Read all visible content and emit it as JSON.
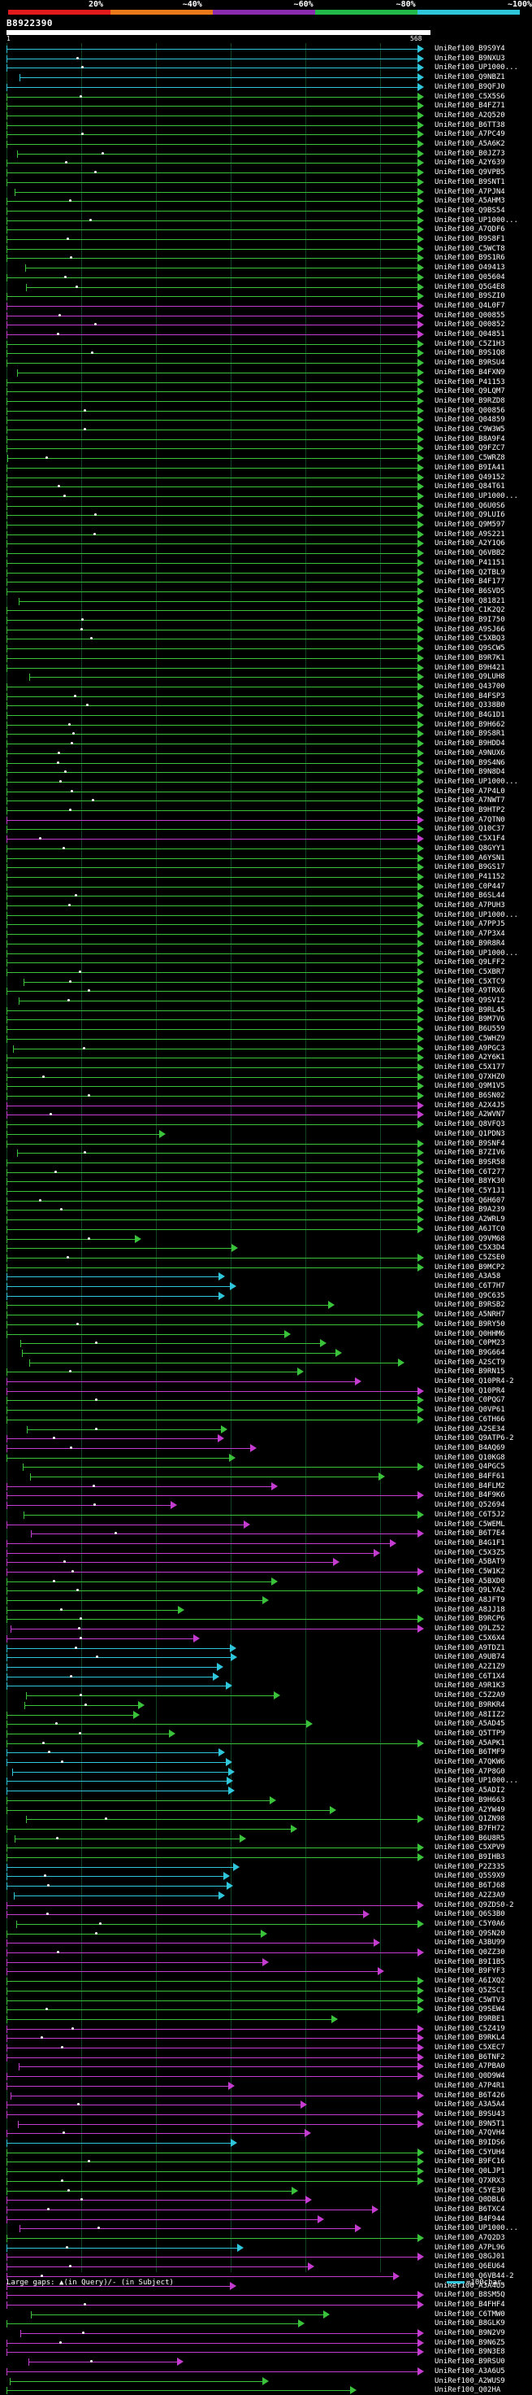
{
  "scale": {
    "labels": [
      "20%",
      "~40%",
      "~60%",
      "~80%",
      "~100%"
    ],
    "colors": [
      "#e11b1b",
      "#e8781a",
      "#8b2bb0",
      "#22b84a",
      "#2fc6dc"
    ]
  },
  "query": {
    "id": "B8922390",
    "start": "1",
    "end": "568"
  },
  "legend": {
    "large_gaps": "Large gaps: ▲(in Query)/- (in Subject)",
    "unit": "=100char."
  },
  "hits": [
    {
      "id": "UniRef100_B9S9Y4",
      "c": "cyan"
    },
    {
      "id": "UniRef100_B9NXU3",
      "c": "cyan"
    },
    {
      "id": "UniRef100_UP1000...",
      "c": "cyan"
    },
    {
      "id": "UniRef100_Q9NBZ1",
      "c": "cyan"
    },
    {
      "id": "UniRef100_B9QFJ0",
      "c": "cyan"
    },
    {
      "id": "UniRef100_C5X5S6",
      "c": "green"
    },
    {
      "id": "UniRef100_B4FZ71",
      "c": "green"
    },
    {
      "id": "UniRef100_A2Q520",
      "c": "green"
    },
    {
      "id": "UniRef100_B6TT38",
      "c": "green"
    },
    {
      "id": "UniRef100_A7PC49",
      "c": "green"
    },
    {
      "id": "UniRef100_A5A6K2",
      "c": "green"
    },
    {
      "id": "UniRef100_B0JZ73",
      "c": "green"
    },
    {
      "id": "UniRef100_A2Y639",
      "c": "green"
    },
    {
      "id": "UniRef100_Q9VPB5",
      "c": "green"
    },
    {
      "id": "UniRef100_B9SNT1",
      "c": "green"
    },
    {
      "id": "UniRef100_A7PJN4",
      "c": "green"
    },
    {
      "id": "UniRef100_A5AHM3",
      "c": "green"
    },
    {
      "id": "UniRef100_Q9BS54",
      "c": "green"
    },
    {
      "id": "UniRef100_UP1000...",
      "c": "green"
    },
    {
      "id": "UniRef100_A7QDF6",
      "c": "green"
    },
    {
      "id": "UniRef100_B9S8F1",
      "c": "green"
    },
    {
      "id": "UniRef100_C5WCT8",
      "c": "green"
    },
    {
      "id": "UniRef100_B9S1R6",
      "c": "green"
    },
    {
      "id": "UniRef100_O49413",
      "c": "green"
    },
    {
      "id": "UniRef100_Q05604",
      "c": "green"
    },
    {
      "id": "UniRef100_Q5G4E8",
      "c": "green"
    },
    {
      "id": "UniRef100_B9SZI0",
      "c": "green"
    },
    {
      "id": "UniRef100_Q4L0F7",
      "c": "magenta"
    },
    {
      "id": "UniRef100_Q00855",
      "c": "magenta"
    },
    {
      "id": "UniRef100_Q00852",
      "c": "magenta"
    },
    {
      "id": "UniRef100_Q04851",
      "c": "magenta"
    },
    {
      "id": "UniRef100_C5Z1H3",
      "c": "green"
    },
    {
      "id": "UniRef100_B9S1Q8",
      "c": "green"
    },
    {
      "id": "UniRef100_B9RSU4",
      "c": "green"
    },
    {
      "id": "UniRef100_B4FXN9",
      "c": "green"
    },
    {
      "id": "UniRef100_P41153",
      "c": "green"
    },
    {
      "id": "UniRef100_Q9LQM7",
      "c": "green"
    },
    {
      "id": "UniRef100_B9RZD8",
      "c": "green"
    },
    {
      "id": "UniRef100_Q00856",
      "c": "green"
    },
    {
      "id": "UniRef100_Q04859",
      "c": "green"
    },
    {
      "id": "UniRef100_C9W3W5",
      "c": "green"
    },
    {
      "id": "UniRef100_B8A9F4",
      "c": "green"
    },
    {
      "id": "UniRef100_Q9FZC7",
      "c": "green"
    },
    {
      "id": "UniRef100_C5WRZ8",
      "c": "green"
    },
    {
      "id": "UniRef100_B9IA41",
      "c": "green"
    },
    {
      "id": "UniRef100_Q49152",
      "c": "green"
    },
    {
      "id": "UniRef100_Q84T61",
      "c": "green"
    },
    {
      "id": "UniRef100_UP1000...",
      "c": "green"
    },
    {
      "id": "UniRef100_Q6U0S6",
      "c": "green"
    },
    {
      "id": "UniRef100_Q9LUI6",
      "c": "green"
    },
    {
      "id": "UniRef100_Q9M597",
      "c": "green"
    },
    {
      "id": "UniRef100_A9S221",
      "c": "green"
    },
    {
      "id": "UniRef100_A2Y1Q6",
      "c": "green"
    },
    {
      "id": "UniRef100_Q6VBB2",
      "c": "green"
    },
    {
      "id": "UniRef100_P41151",
      "c": "green"
    },
    {
      "id": "UniRef100_Q2TBL9",
      "c": "green"
    },
    {
      "id": "UniRef100_B4F177",
      "c": "green"
    },
    {
      "id": "UniRef100_B6SVD5",
      "c": "green"
    },
    {
      "id": "UniRef100_Q81821",
      "c": "green"
    },
    {
      "id": "UniRef100_C1K2Q2",
      "c": "green"
    },
    {
      "id": "UniRef100_B9I750",
      "c": "green"
    },
    {
      "id": "UniRef100_A9SJ66",
      "c": "green"
    },
    {
      "id": "UniRef100_C5XBQ3",
      "c": "green"
    },
    {
      "id": "UniRef100_Q9SCW5",
      "c": "green"
    },
    {
      "id": "UniRef100_B9R7K1",
      "c": "green"
    },
    {
      "id": "UniRef100_B9H421",
      "c": "green"
    },
    {
      "id": "UniRef100_Q9LUH8",
      "c": "green"
    },
    {
      "id": "UniRef100_Q43700",
      "c": "green"
    },
    {
      "id": "UniRef100_B4FSP3",
      "c": "green"
    },
    {
      "id": "UniRef100_Q338B0",
      "c": "green"
    },
    {
      "id": "UniRef100_B4G1D1",
      "c": "green"
    },
    {
      "id": "UniRef100_B9H662",
      "c": "green"
    },
    {
      "id": "UniRef100_B9S8R1",
      "c": "green"
    },
    {
      "id": "UniRef100_B9HDD4",
      "c": "green"
    },
    {
      "id": "UniRef100_A9NUX6",
      "c": "green"
    },
    {
      "id": "UniRef100_B9S4N6",
      "c": "green"
    },
    {
      "id": "UniRef100_B9N8D4",
      "c": "green"
    },
    {
      "id": "UniRef100_UP1000...",
      "c": "green"
    },
    {
      "id": "UniRef100_A7P4L0",
      "c": "green"
    },
    {
      "id": "UniRef100_A7NWT7",
      "c": "green"
    },
    {
      "id": "UniRef100_B9HTP2",
      "c": "green"
    },
    {
      "id": "UniRef100_A7QTN0",
      "c": "magenta"
    },
    {
      "id": "UniRef100_Q10C37",
      "c": "green"
    },
    {
      "id": "UniRef100_C5X1F4",
      "c": "magenta"
    },
    {
      "id": "UniRef100_Q8GYY1",
      "c": "green"
    },
    {
      "id": "UniRef100_A6YSN1",
      "c": "green"
    },
    {
      "id": "UniRef100_B9GS17",
      "c": "green"
    },
    {
      "id": "UniRef100_P41152",
      "c": "green"
    },
    {
      "id": "UniRef100_C0P447",
      "c": "green"
    },
    {
      "id": "UniRef100_B6SL44",
      "c": "green"
    },
    {
      "id": "UniRef100_A7PUH3",
      "c": "green"
    },
    {
      "id": "UniRef100_UP1000...",
      "c": "green"
    },
    {
      "id": "UniRef100_A7PPJ5",
      "c": "green"
    },
    {
      "id": "UniRef100_A7P3X4",
      "c": "green"
    },
    {
      "id": "UniRef100_B9R8R4",
      "c": "green"
    },
    {
      "id": "UniRef100_UP1000...",
      "c": "green"
    },
    {
      "id": "UniRef100_Q9LFF2",
      "c": "green"
    },
    {
      "id": "UniRef100_C5XBR7",
      "c": "green"
    },
    {
      "id": "UniRef100_C5XTC9",
      "c": "green"
    },
    {
      "id": "UniRef100_A9TRX6",
      "c": "green"
    },
    {
      "id": "UniRef100_Q9SV12",
      "c": "green"
    },
    {
      "id": "UniRef100_B9RL45",
      "c": "green"
    },
    {
      "id": "UniRef100_B9M7V6",
      "c": "green"
    },
    {
      "id": "UniRef100_B6U559",
      "c": "green"
    },
    {
      "id": "UniRef100_C5WHZ9",
      "c": "green"
    },
    {
      "id": "UniRef100_A9PGC3",
      "c": "green"
    },
    {
      "id": "UniRef100_A2Y6K1",
      "c": "green"
    },
    {
      "id": "UniRef100_C5X177",
      "c": "green"
    },
    {
      "id": "UniRef100_Q7XHZ0",
      "c": "green"
    },
    {
      "id": "UniRef100_Q9M1V5",
      "c": "green"
    },
    {
      "id": "UniRef100_B6SN02",
      "c": "green"
    },
    {
      "id": "UniRef100_A2X4J5",
      "c": "magenta"
    },
    {
      "id": "UniRef100_A2WVN7",
      "c": "magenta"
    },
    {
      "id": "UniRef100_Q8VFQ3",
      "c": "green"
    },
    {
      "id": "UniRef100_Q1PDN3",
      "c": "green"
    },
    {
      "id": "UniRef100_B9SNF4",
      "c": "green"
    },
    {
      "id": "UniRef100_B7ZIV6",
      "c": "green"
    },
    {
      "id": "UniRef100_B9SR58",
      "c": "green"
    },
    {
      "id": "UniRef100_C6T277",
      "c": "green"
    },
    {
      "id": "UniRef100_B8YK30",
      "c": "green"
    },
    {
      "id": "UniRef100_C5Y1J1",
      "c": "green"
    },
    {
      "id": "UniRef100_Q6H607",
      "c": "green"
    },
    {
      "id": "UniRef100_B9A239",
      "c": "green"
    },
    {
      "id": "UniRef100_A2WRL9",
      "c": "green"
    },
    {
      "id": "UniRef100_A6JTC0",
      "c": "green"
    },
    {
      "id": "UniRef100_Q9VM68",
      "c": "green"
    },
    {
      "id": "UniRef100_C5X3D4",
      "c": "green"
    },
    {
      "id": "UniRef100_C5ZSE0",
      "c": "green"
    },
    {
      "id": "UniRef100_B9MCP2",
      "c": "green"
    },
    {
      "id": "UniRef100_A3A58",
      "c": "cyan"
    },
    {
      "id": "UniRef100_C6T7H7",
      "c": "cyan"
    },
    {
      "id": "UniRef100_Q9C635",
      "c": "cyan"
    },
    {
      "id": "UniRef100_B9RSB2",
      "c": "green"
    },
    {
      "id": "UniRef100_A5NRH7",
      "c": "green"
    },
    {
      "id": "UniRef100_B9RY50",
      "c": "green"
    },
    {
      "id": "UniRef100_Q0HHM6",
      "c": "green"
    },
    {
      "id": "UniRef100_C0PM23",
      "c": "green"
    },
    {
      "id": "UniRef100_B9G664",
      "c": "green"
    },
    {
      "id": "UniRef100_A2SCT9",
      "c": "green"
    },
    {
      "id": "UniRef100_B9RN15",
      "c": "green"
    },
    {
      "id": "UniRef100_Q10PR4-2",
      "c": "magenta"
    },
    {
      "id": "UniRef100_Q10PR4",
      "c": "magenta"
    },
    {
      "id": "UniRef100_C0PQG7",
      "c": "green"
    },
    {
      "id": "UniRef100_Q0VP61",
      "c": "green"
    },
    {
      "id": "UniRef100_C6TH66",
      "c": "green"
    },
    {
      "id": "UniRef100_A2SE34",
      "c": "green"
    },
    {
      "id": "UniRef100_Q9ATP6-2",
      "c": "magenta"
    },
    {
      "id": "UniRef100_B4AQ69",
      "c": "magenta"
    },
    {
      "id": "UniRef100_Q10KG8",
      "c": "green"
    },
    {
      "id": "UniRef100_Q4PGC5",
      "c": "green"
    },
    {
      "id": "UniRef100_B4FF61",
      "c": "green"
    },
    {
      "id": "UniRef100_B4FLM2",
      "c": "magenta"
    },
    {
      "id": "UniRef100_B4F9K6",
      "c": "magenta"
    },
    {
      "id": "UniRef100_Q52694",
      "c": "magenta"
    },
    {
      "id": "UniRef100_C6T5J2",
      "c": "green"
    },
    {
      "id": "UniRef100_C5WEML",
      "c": "magenta"
    },
    {
      "id": "UniRef100_B6T7E4",
      "c": "magenta"
    },
    {
      "id": "UniRef100_B4G1F1",
      "c": "magenta"
    },
    {
      "id": "UniRef100_C5X3Z5",
      "c": "magenta"
    },
    {
      "id": "UniRef100_A5BAT9",
      "c": "magenta"
    },
    {
      "id": "UniRef100_C5W1K2",
      "c": "magenta"
    },
    {
      "id": "UniRef100_A5BXD0",
      "c": "green"
    },
    {
      "id": "UniRef100_Q9LYA2",
      "c": "green"
    },
    {
      "id": "UniRef100_A8JFT9",
      "c": "green"
    },
    {
      "id": "UniRef100_A8JJ18",
      "c": "green"
    },
    {
      "id": "UniRef100_B9RCP6",
      "c": "green"
    },
    {
      "id": "UniRef100_Q9LZ52",
      "c": "magenta"
    },
    {
      "id": "UniRef100_C5X6X4",
      "c": "magenta"
    },
    {
      "id": "UniRef100_A9TDZ1",
      "c": "cyan"
    },
    {
      "id": "UniRef100_A9UB74",
      "c": "cyan"
    },
    {
      "id": "UniRef100_A2Z1Z9",
      "c": "cyan"
    },
    {
      "id": "UniRef100_C6T1X4",
      "c": "cyan"
    },
    {
      "id": "UniRef100_A9R1K3",
      "c": "cyan"
    },
    {
      "id": "UniRef100_C5Z2A9",
      "c": "green"
    },
    {
      "id": "UniRef100_B9RKR4",
      "c": "green"
    },
    {
      "id": "UniRef100_A8IIZ2",
      "c": "green"
    },
    {
      "id": "UniRef100_A5AD45",
      "c": "green"
    },
    {
      "id": "UniRef100_Q5TTP9",
      "c": "green"
    },
    {
      "id": "UniRef100_A5APK1",
      "c": "green"
    },
    {
      "id": "UniRef100_B6TMF9",
      "c": "cyan"
    },
    {
      "id": "UniRef100_A7QKW6",
      "c": "cyan"
    },
    {
      "id": "UniRef100_A7P8G0",
      "c": "cyan"
    },
    {
      "id": "UniRef100_UP1000...",
      "c": "cyan"
    },
    {
      "id": "UniRef100_A5ADI2",
      "c": "cyan"
    },
    {
      "id": "UniRef100_B9H663",
      "c": "green"
    },
    {
      "id": "UniRef100_A2YW49",
      "c": "green"
    },
    {
      "id": "UniRef100_Q1ZN98",
      "c": "green"
    },
    {
      "id": "UniRef100_B7FH72",
      "c": "green"
    },
    {
      "id": "UniRef100_B6U8R5",
      "c": "green"
    },
    {
      "id": "UniRef100_C5XPV9",
      "c": "green"
    },
    {
      "id": "UniRef100_B9IHB3",
      "c": "green"
    },
    {
      "id": "UniRef100_P2Z335",
      "c": "cyan"
    },
    {
      "id": "UniRef100_Q5S9X9",
      "c": "cyan"
    },
    {
      "id": "UniRef100_B6TJ68",
      "c": "cyan"
    },
    {
      "id": "UniRef100_A2Z3A9",
      "c": "cyan"
    },
    {
      "id": "UniRef100_Q9ZDS0-2",
      "c": "magenta"
    },
    {
      "id": "UniRef100_Q6S3B0",
      "c": "magenta"
    },
    {
      "id": "UniRef100_C5Y0A6",
      "c": "green"
    },
    {
      "id": "UniRef100_Q9SN20",
      "c": "green"
    },
    {
      "id": "UniRef100_A3BU99",
      "c": "magenta"
    },
    {
      "id": "UniRef100_Q0ZZ30",
      "c": "magenta"
    },
    {
      "id": "UniRef100_B9I1B5",
      "c": "magenta"
    },
    {
      "id": "UniRef100_B9FYF3",
      "c": "magenta"
    },
    {
      "id": "UniRef100_A6IXQ2",
      "c": "green"
    },
    {
      "id": "UniRef100_Q5ZSCI",
      "c": "green"
    },
    {
      "id": "UniRef100_C5WTV3",
      "c": "green"
    },
    {
      "id": "UniRef100_Q9SEW4",
      "c": "green"
    },
    {
      "id": "UniRef100_B9RBE1",
      "c": "green"
    },
    {
      "id": "UniRef100_C5Z419",
      "c": "magenta"
    },
    {
      "id": "UniRef100_B9RKL4",
      "c": "magenta"
    },
    {
      "id": "UniRef100_C5XEC7",
      "c": "magenta"
    },
    {
      "id": "UniRef100_B6TNF2",
      "c": "magenta"
    },
    {
      "id": "UniRef100_A7PBA0",
      "c": "magenta"
    },
    {
      "id": "UniRef100_Q0D9W4",
      "c": "magenta"
    },
    {
      "id": "UniRef100_A7P4R1",
      "c": "magenta"
    },
    {
      "id": "UniRef100_B6T426",
      "c": "magenta"
    },
    {
      "id": "UniRef100_A3A5A4",
      "c": "magenta"
    },
    {
      "id": "UniRef100_B9SU43",
      "c": "magenta"
    },
    {
      "id": "UniRef100_B9N5T1",
      "c": "magenta"
    },
    {
      "id": "UniRef100_A7QVH4",
      "c": "magenta"
    },
    {
      "id": "UniRef100_B9IDS6",
      "c": "cyan"
    },
    {
      "id": "UniRef100_C5YUH4",
      "c": "green"
    },
    {
      "id": "UniRef100_B9FC16",
      "c": "green"
    },
    {
      "id": "UniRef100_Q0LJP1",
      "c": "green"
    },
    {
      "id": "UniRef100_Q7XRX3",
      "c": "green"
    },
    {
      "id": "UniRef100_C5YE30",
      "c": "green"
    },
    {
      "id": "UniRef100_Q0DBL6",
      "c": "magenta"
    },
    {
      "id": "UniRef100_B6TXC4",
      "c": "magenta"
    },
    {
      "id": "UniRef100_B4F944",
      "c": "magenta"
    },
    {
      "id": "UniRef100_UP1000...",
      "c": "magenta"
    },
    {
      "id": "UniRef100_A7Q2D3",
      "c": "green"
    },
    {
      "id": "UniRef100_A7PL96",
      "c": "cyan"
    },
    {
      "id": "UniRef100_Q8GJ01",
      "c": "magenta"
    },
    {
      "id": "UniRef100_Q6EU64",
      "c": "magenta"
    },
    {
      "id": "UniRef100_Q6VB44-2",
      "c": "magenta"
    },
    {
      "id": "UniRef100_A3A4U5",
      "c": "magenta"
    },
    {
      "id": "UniRef100_B8SM5Q",
      "c": "magenta"
    },
    {
      "id": "UniRef100_B4FHF4",
      "c": "magenta"
    },
    {
      "id": "UniRef100_C6TMW0",
      "c": "green"
    },
    {
      "id": "UniRef100_B8GLK9",
      "c": "green"
    },
    {
      "id": "UniRef100_B9N2V9",
      "c": "magenta"
    },
    {
      "id": "UniRef100_B9N6Z5",
      "c": "magenta"
    },
    {
      "id": "UniRef100_B9N3E8",
      "c": "magenta"
    },
    {
      "id": "UniRef100_B9RSU0",
      "c": "magenta"
    },
    {
      "id": "UniRef100_A3A6U5",
      "c": "magenta"
    },
    {
      "id": "UniRef100_A2WUS9",
      "c": "green"
    },
    {
      "id": "UniRef100_Q02HA",
      "c": "green"
    }
  ]
}
